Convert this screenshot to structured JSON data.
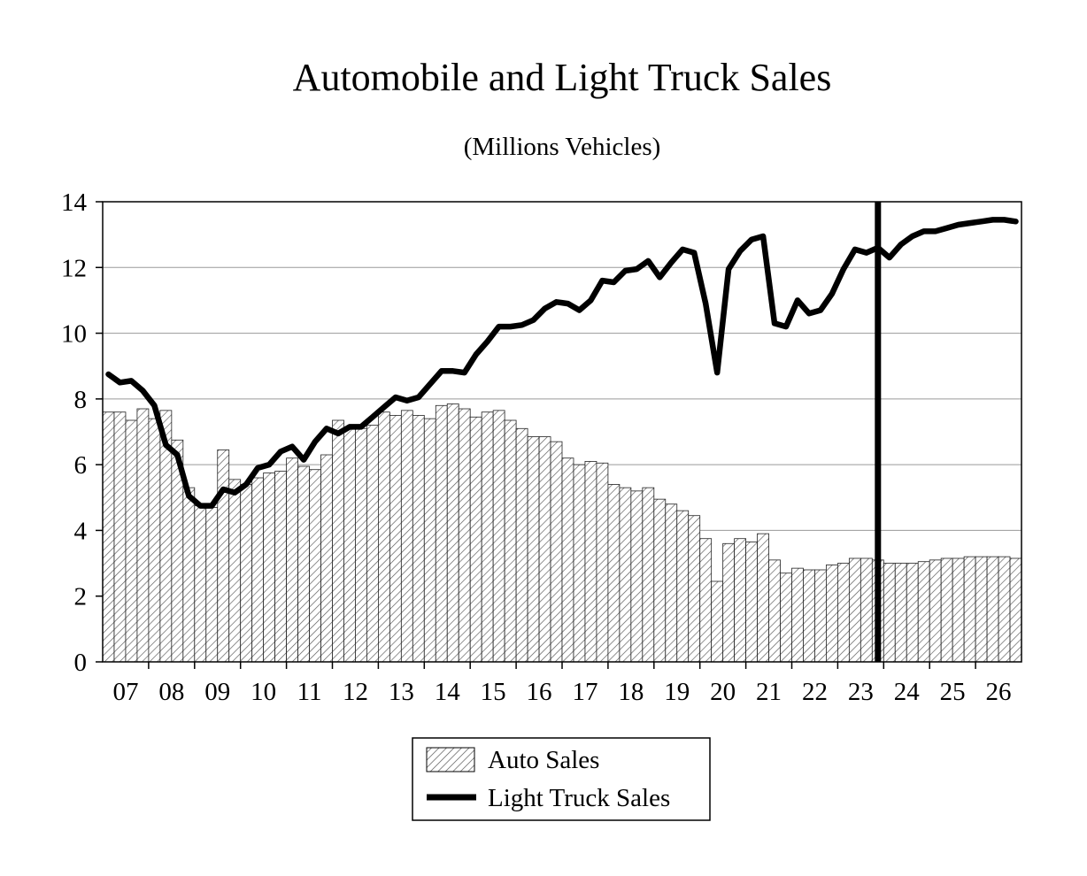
{
  "chart_data": {
    "type": "bar+line",
    "title": "Automobile and Light Truck Sales",
    "subtitle": "(Millions Vehicles)",
    "xlabel": "",
    "ylabel": "",
    "ylim": [
      0,
      14
    ],
    "yticks": [
      0,
      2,
      4,
      6,
      8,
      10,
      12,
      14
    ],
    "grid": true,
    "legend_position": "bottom-center",
    "periods": "quarterly, 2007 Q1 through 2026 Q4",
    "year_labels": [
      "07",
      "08",
      "09",
      "10",
      "11",
      "12",
      "13",
      "14",
      "15",
      "16",
      "17",
      "18",
      "19",
      "20",
      "21",
      "22",
      "23",
      "24",
      "25",
      "26"
    ],
    "forecast_divider_quarter_index": 67.5,
    "series": [
      {
        "name": "Auto Sales",
        "kind": "bar",
        "pattern": "diagonal-hatch",
        "values": [
          7.6,
          7.6,
          7.35,
          7.7,
          7.4,
          7.65,
          6.75,
          5.3,
          4.75,
          4.7,
          6.45,
          5.55,
          5.4,
          5.6,
          5.75,
          5.8,
          6.2,
          5.95,
          5.85,
          6.3,
          7.35,
          7.1,
          7.1,
          7.2,
          7.6,
          7.5,
          7.65,
          7.5,
          7.4,
          7.8,
          7.85,
          7.7,
          7.45,
          7.6,
          7.65,
          7.35,
          7.1,
          6.85,
          6.85,
          6.7,
          6.2,
          6.0,
          6.1,
          6.05,
          5.4,
          5.3,
          5.2,
          5.3,
          4.95,
          4.8,
          4.6,
          4.45,
          3.75,
          2.45,
          3.6,
          3.75,
          3.65,
          3.9,
          3.1,
          2.7,
          2.85,
          2.8,
          2.8,
          2.95,
          3.0,
          3.15,
          3.15,
          3.1,
          3.0,
          3.0,
          3.0,
          3.05,
          3.1,
          3.15,
          3.15,
          3.2,
          3.2,
          3.2,
          3.2,
          3.15
        ]
      },
      {
        "name": "Light Truck Sales",
        "kind": "line",
        "values": [
          8.75,
          8.5,
          8.55,
          8.25,
          7.8,
          6.6,
          6.3,
          5.05,
          4.75,
          4.75,
          5.25,
          5.15,
          5.4,
          5.9,
          6.0,
          6.4,
          6.55,
          6.15,
          6.7,
          7.1,
          6.95,
          7.15,
          7.15,
          7.45,
          7.75,
          8.05,
          7.95,
          8.05,
          8.45,
          8.85,
          8.85,
          8.8,
          9.35,
          9.75,
          10.2,
          10.2,
          10.25,
          10.4,
          10.75,
          10.95,
          10.9,
          10.7,
          11.0,
          11.6,
          11.55,
          11.9,
          11.95,
          12.2,
          11.7,
          12.15,
          12.55,
          12.45,
          10.9,
          8.8,
          11.95,
          12.5,
          12.85,
          12.95,
          10.3,
          10.2,
          11.0,
          10.6,
          10.7,
          11.2,
          11.95,
          12.55,
          12.45,
          12.6,
          12.3,
          12.7,
          12.95,
          13.1,
          13.1,
          13.2,
          13.3,
          13.35,
          13.4,
          13.45,
          13.45,
          13.4
        ]
      }
    ]
  }
}
